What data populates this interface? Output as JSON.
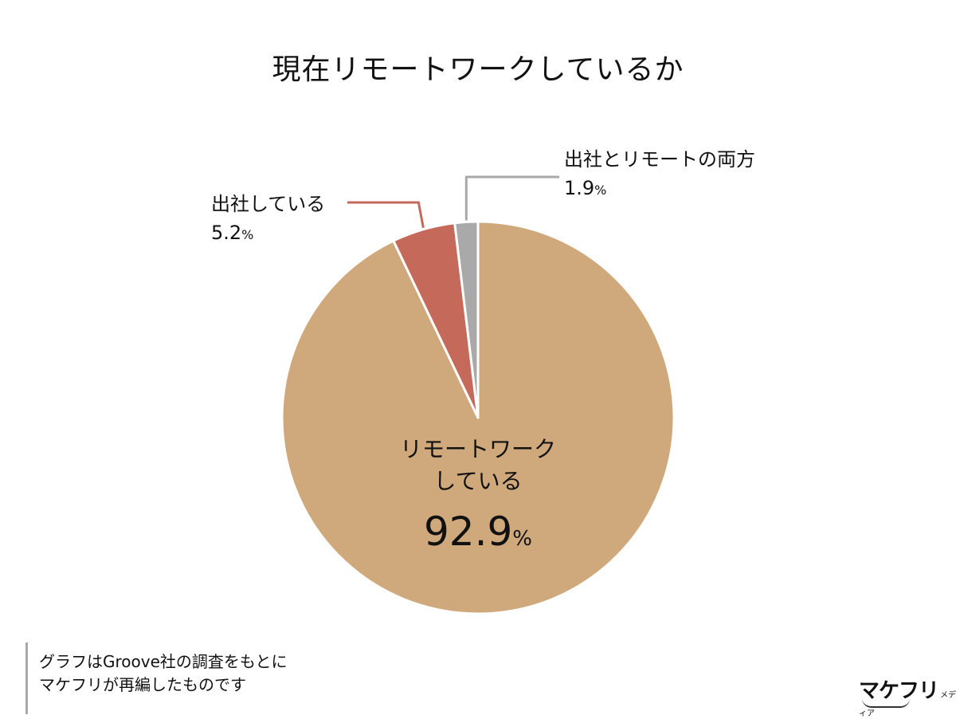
{
  "title": "現在リモートワークしているか",
  "chart_data": {
    "type": "pie",
    "title": "現在リモートワークしているか",
    "slices": [
      {
        "label": "リモートワーク\nしている",
        "label_line1": "リモートワーク",
        "label_line2": "している",
        "value": 92.9,
        "value_text": "92.9",
        "color": "#cfa97b"
      },
      {
        "label": "出社している",
        "value": 5.2,
        "value_text": "5.2",
        "color": "#c5695a"
      },
      {
        "label": "出社とリモートの両方",
        "value": 1.9,
        "value_text": "1.9",
        "color": "#a9a9a9"
      }
    ],
    "unit": "%",
    "legend": "none"
  },
  "note": {
    "line1": "グラフはGroove社の調査をもとに",
    "line2": "マケフリが再編したものです"
  },
  "brand": {
    "name": "マケフリ",
    "sub": "メディア"
  }
}
